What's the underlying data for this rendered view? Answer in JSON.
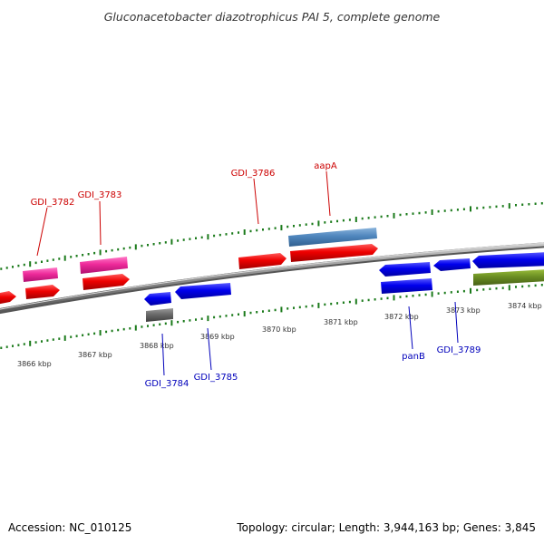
{
  "title": "Gluconacetobacter diazotrophicus PAI 5, complete genome",
  "footer": {
    "accession": "Accession: NC_010125",
    "stats": "Topology: circular; Length: 3,944,163 bp; Genes: 3,845"
  },
  "colors": {
    "forward_label": "#cc0000",
    "reverse_label": "#0000bb",
    "tick": "#1a7a1a",
    "backbone": "#8c8c8c"
  },
  "kbp_labels": [
    "3866 kbp",
    "3867 kbp",
    "3868 kbp",
    "3869 kbp",
    "3870 kbp",
    "3871 kbp",
    "3872 kbp",
    "3873 kbp",
    "3874 kbp"
  ],
  "gene_labels": {
    "gdi3782": "GDI_3782",
    "gdi3783": "GDI_3783",
    "gdi3786": "GDI_3786",
    "aapA": "aapA",
    "gdi3784": "GDI_3784",
    "gdi3785": "GDI_3785",
    "panB": "panB",
    "gdi3789": "GDI_3789"
  }
}
